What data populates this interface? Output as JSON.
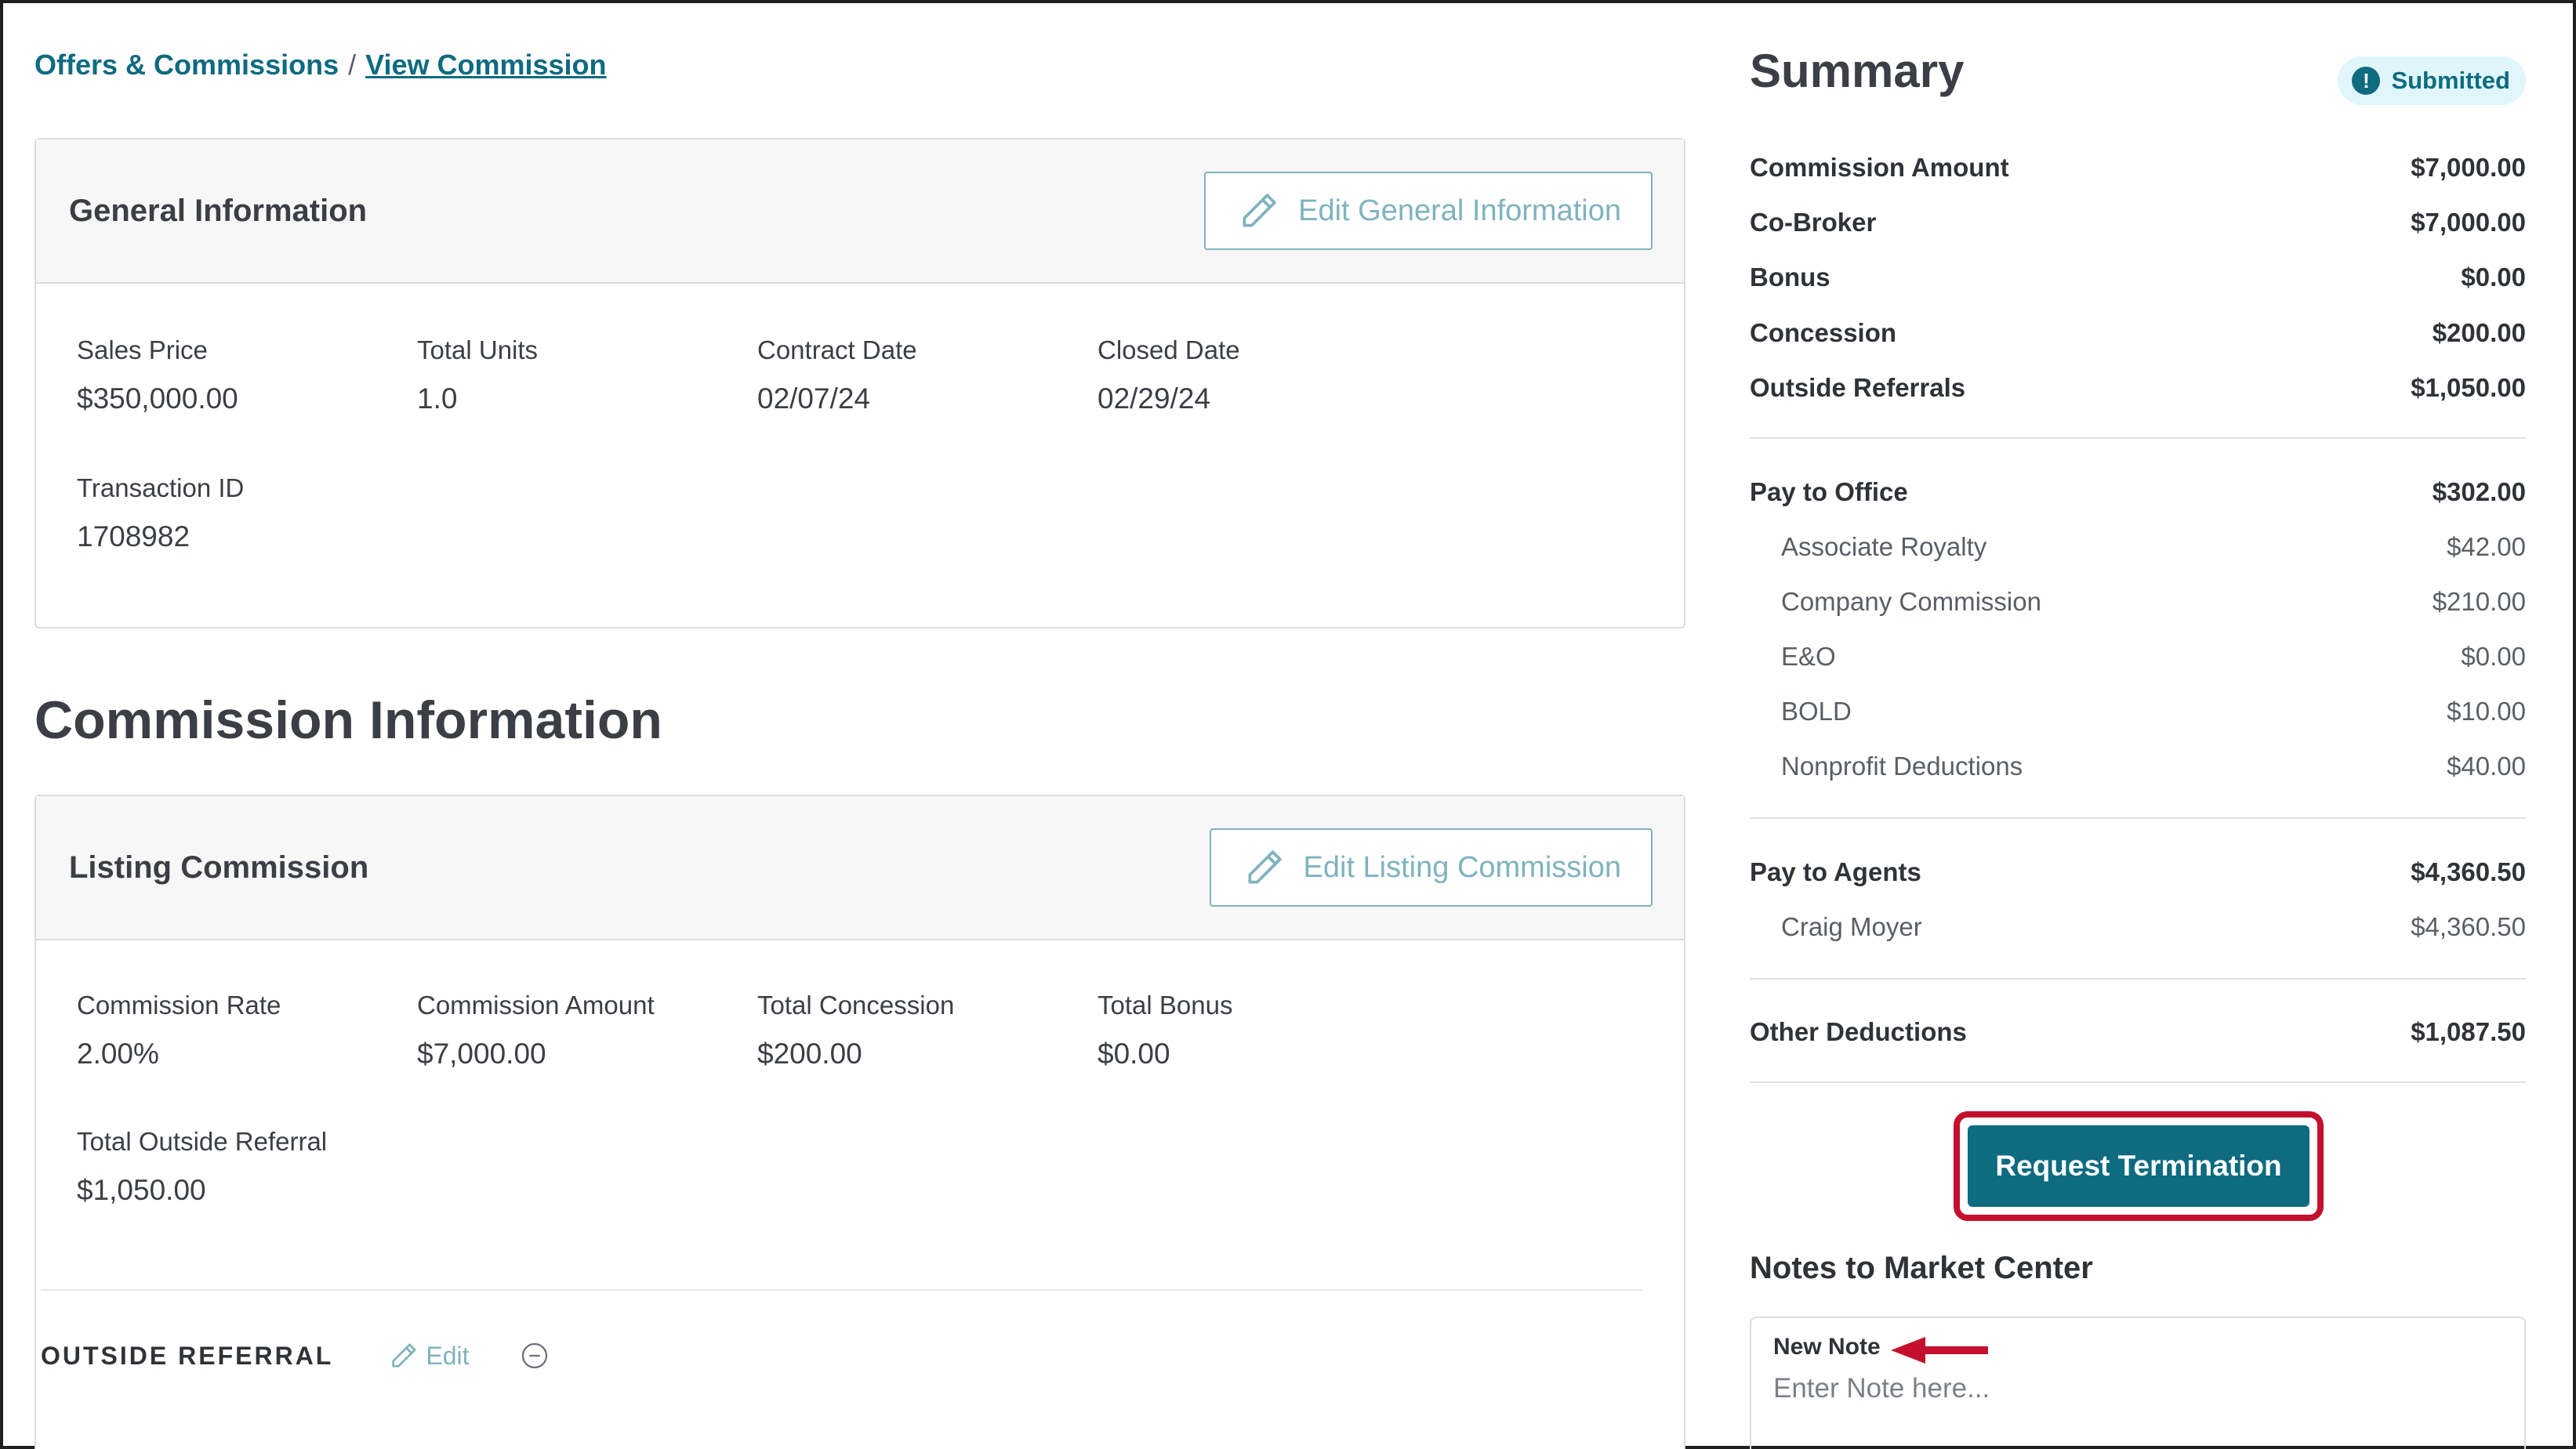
{
  "breadcrumb": {
    "parent": "Offers & Commissions",
    "separator": "/",
    "current": "View Commission"
  },
  "general_info": {
    "title": "General Information",
    "edit_button": "Edit General Information",
    "edit_icon": "pencil-icon",
    "fields": [
      {
        "label": "Sales Price",
        "value": "$350,000.00"
      },
      {
        "label": "Total Units",
        "value": "1.0"
      },
      {
        "label": "Contract Date",
        "value": "02/07/24"
      },
      {
        "label": "Closed Date",
        "value": "02/29/24"
      },
      {
        "label": "Transaction ID",
        "value": "1708982"
      }
    ]
  },
  "commission_info": {
    "heading": "Commission Information",
    "listing": {
      "title": "Listing Commission",
      "edit_button": "Edit Listing Commission",
      "fields": [
        {
          "label": "Commission Rate",
          "value": "2.00%"
        },
        {
          "label": "Commission Amount",
          "value": "$7,000.00"
        },
        {
          "label": "Total Concession",
          "value": "$200.00"
        },
        {
          "label": "Total Bonus",
          "value": "$0.00"
        },
        {
          "label": "Total Outside Referral",
          "value": "$1,050.00"
        }
      ],
      "outside_referral": {
        "label": "OUTSIDE REFERRAL",
        "edit": "Edit",
        "remove_icon": "minus-circle-icon"
      }
    }
  },
  "summary": {
    "title": "Summary",
    "status": "Submitted",
    "status_icon": "exclamation-circle-icon",
    "commission_amount": {
      "label": "Commission Amount",
      "value": "$7,000.00"
    },
    "co_broker": {
      "label": "Co-Broker",
      "value": "$7,000.00"
    },
    "bonus": {
      "label": "Bonus",
      "value": "$0.00"
    },
    "concession": {
      "label": "Concession",
      "value": "$200.00"
    },
    "outside_referrals": {
      "label": "Outside Referrals",
      "value": "$1,050.00"
    },
    "pay_to_office": {
      "label": "Pay to Office",
      "value": "$302.00"
    },
    "associate_royalty": {
      "label": "Associate Royalty",
      "value": "$42.00"
    },
    "company_commission": {
      "label": "Company Commission",
      "value": "$210.00"
    },
    "eo": {
      "label": "E&O",
      "value": "$0.00"
    },
    "bold": {
      "label": "BOLD",
      "value": "$10.00"
    },
    "nonprofit": {
      "label": "Nonprofit Deductions",
      "value": "$40.00"
    },
    "pay_to_agents": {
      "label": "Pay to Agents",
      "value": "$4,360.50"
    },
    "agent": {
      "label": "Craig Moyer",
      "value": "$4,360.50"
    },
    "other_deductions": {
      "label": "Other Deductions",
      "value": "$1,087.50"
    },
    "request_termination": "Request Termination"
  },
  "notes": {
    "title": "Notes to Market Center",
    "new_note_label": "New Note",
    "placeholder": "Enter Note here..."
  },
  "colors": {
    "accent": "#0e6b80",
    "highlight_border": "#c4102e",
    "edit_outline": "#7fb3bd"
  }
}
